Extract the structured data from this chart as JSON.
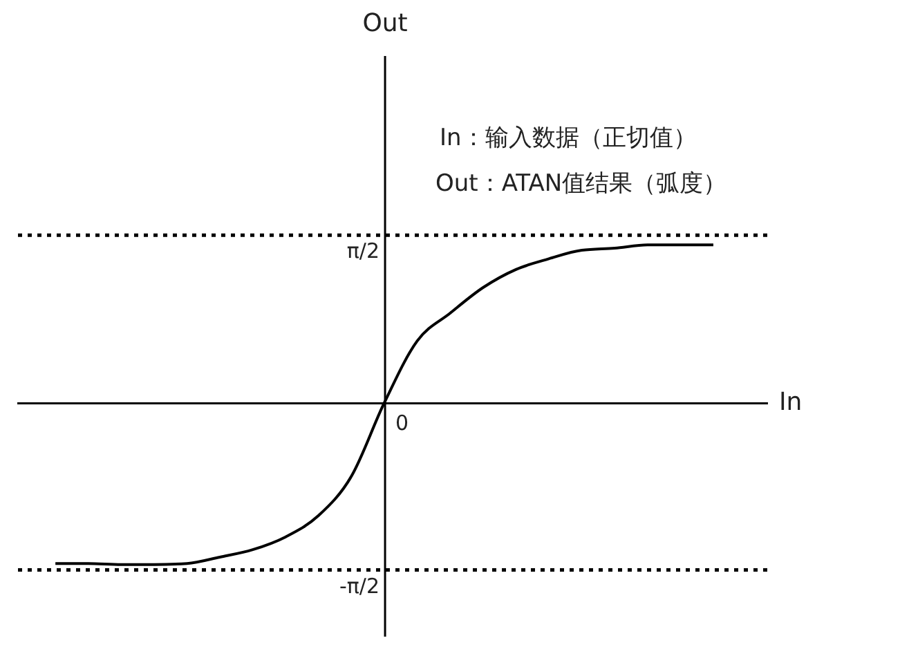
{
  "chart_data": {
    "type": "line",
    "xlabel": "In",
    "ylabel": "Out",
    "categories": [
      null,
      null,
      null,
      null,
      null,
      null,
      null,
      null,
      null,
      null,
      null,
      null,
      null,
      null,
      null,
      null,
      null,
      null,
      null,
      null,
      null
    ],
    "series": [
      {
        "color": "#000000",
        "values": [
          -1.51,
          -1.51,
          -1.52,
          -1.52,
          -1.51,
          -1.45,
          -1.38,
          -1.26,
          -1.06,
          -0.69,
          0,
          0.58,
          0.84,
          1.08,
          1.25,
          1.35,
          1.43,
          1.45,
          1.48,
          1.48,
          1.48
        ]
      }
    ],
    "ylim": [
      -2.19,
      3.26
    ],
    "yticks": [
      {
        "value": -1.5708,
        "label": "-π/2"
      },
      {
        "value": 1.5708,
        "label": "π/2"
      }
    ],
    "ref_lines": [
      {
        "axis": "y",
        "value": 1.5708,
        "color": "#000000",
        "line_style": "dotted"
      },
      {
        "axis": "y",
        "value": -1.5708,
        "color": "#000000",
        "line_style": "dotted"
      }
    ],
    "annotations": [
      "In：输入数据（正切值）",
      "Out：ATAN值结果（弧度）",
      "0"
    ],
    "tick_labels": "y",
    "marker": "none",
    "line_style": "solid"
  }
}
